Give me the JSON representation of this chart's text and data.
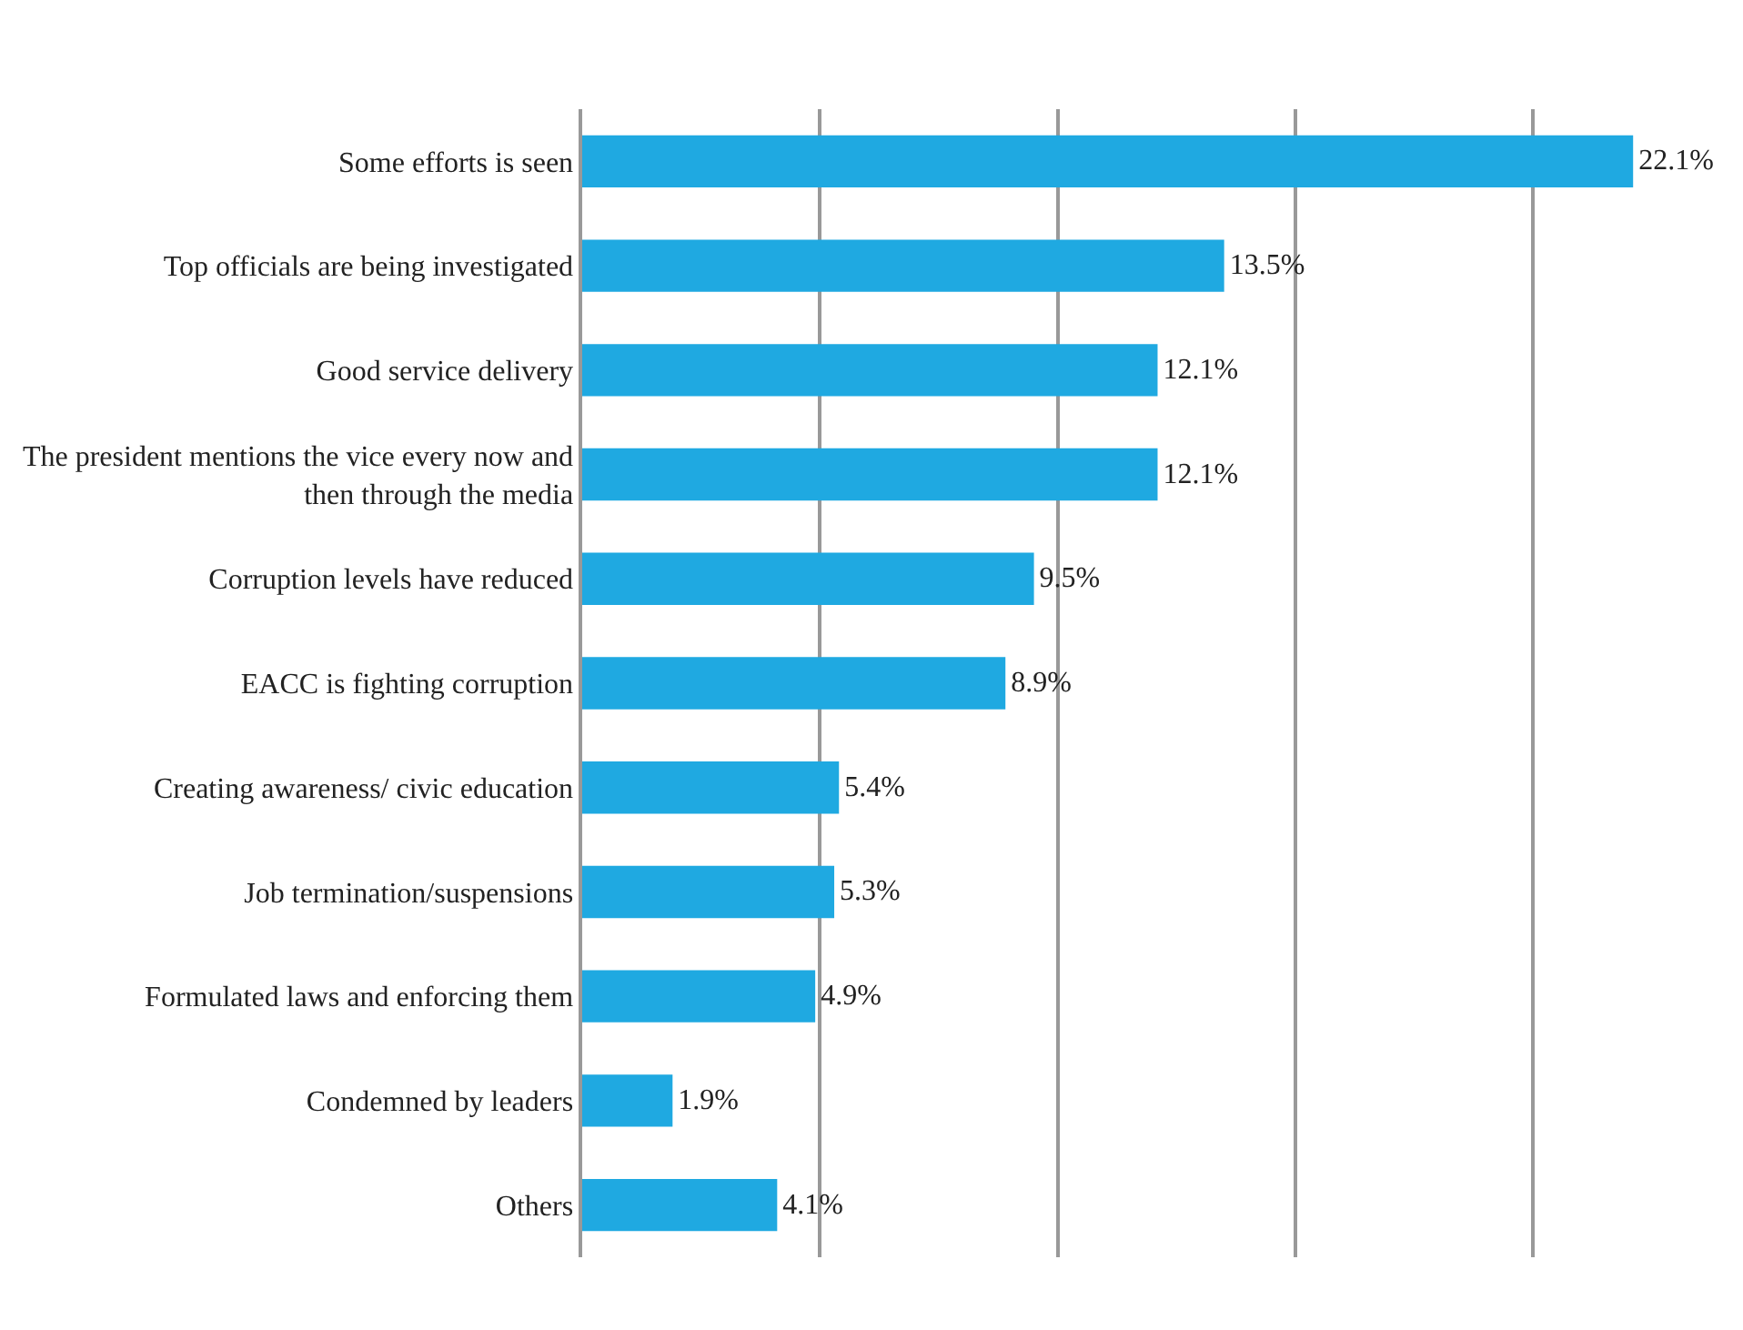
{
  "chart_data": {
    "type": "bar",
    "orientation": "horizontal",
    "categories": [
      "Some efforts is seen",
      "Top officials are being investigated",
      "Good service delivery",
      "The president mentions the vice every now and then through the media",
      "Corruption levels have reduced",
      "EACC is fighting corruption",
      "Creating awareness/ civic education",
      "Job termination/suspensions",
      "Formulated laws and enforcing them",
      "Condemned by leaders",
      "Others"
    ],
    "values": [
      22.1,
      13.5,
      12.1,
      12.1,
      9.5,
      8.9,
      5.4,
      5.3,
      4.9,
      1.9,
      4.1
    ],
    "value_labels": [
      "22.1%",
      "13.5%",
      "12.1%",
      "12.1%",
      "9.5%",
      "8.9%",
      "5.4%",
      "5.3%",
      "4.9%",
      "1.9%",
      "4.1%"
    ],
    "color": "#1fa9e1",
    "grid": "x",
    "tick_labels": "y",
    "legend": false
  }
}
